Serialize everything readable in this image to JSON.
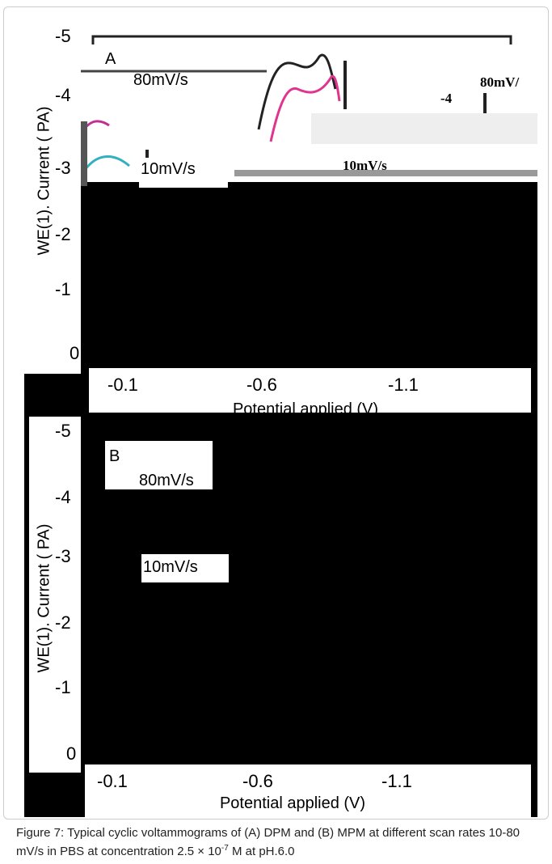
{
  "panel_a": {
    "label": "A",
    "yticks": [
      "-5",
      "-4",
      "-3",
      "-2",
      "-1",
      "0"
    ],
    "y_label": "WE(1). Current ( PA)",
    "xticks": [
      "-0.1",
      "-0.6",
      "-1.1"
    ],
    "x_label": "Potential applied (V)",
    "annotations": [
      "80mV/s",
      "10mV/s"
    ],
    "fragments": [
      "80mV/",
      "-4",
      "10mV/s"
    ]
  },
  "panel_b": {
    "label": "B",
    "yticks": [
      "-5",
      "-4",
      "-3",
      "-2",
      "-1",
      "0"
    ],
    "y_label": "WE(1). Current ( PA)",
    "xticks": [
      "-0.1",
      "-0.6",
      "-1.1"
    ],
    "x_label": "Potential applied (V)",
    "annotations": [
      "80mV/s",
      "10mV/s"
    ]
  },
  "caption": {
    "text": "Figure 7: Typical cyclic voltammograms of (A) DPM and (B) MPM at different scan rates 10-80 mV/s in PBS at concentration 2.5 × 10",
    "superscript": "-7",
    "text_end": " M at pH.6.0"
  }
}
